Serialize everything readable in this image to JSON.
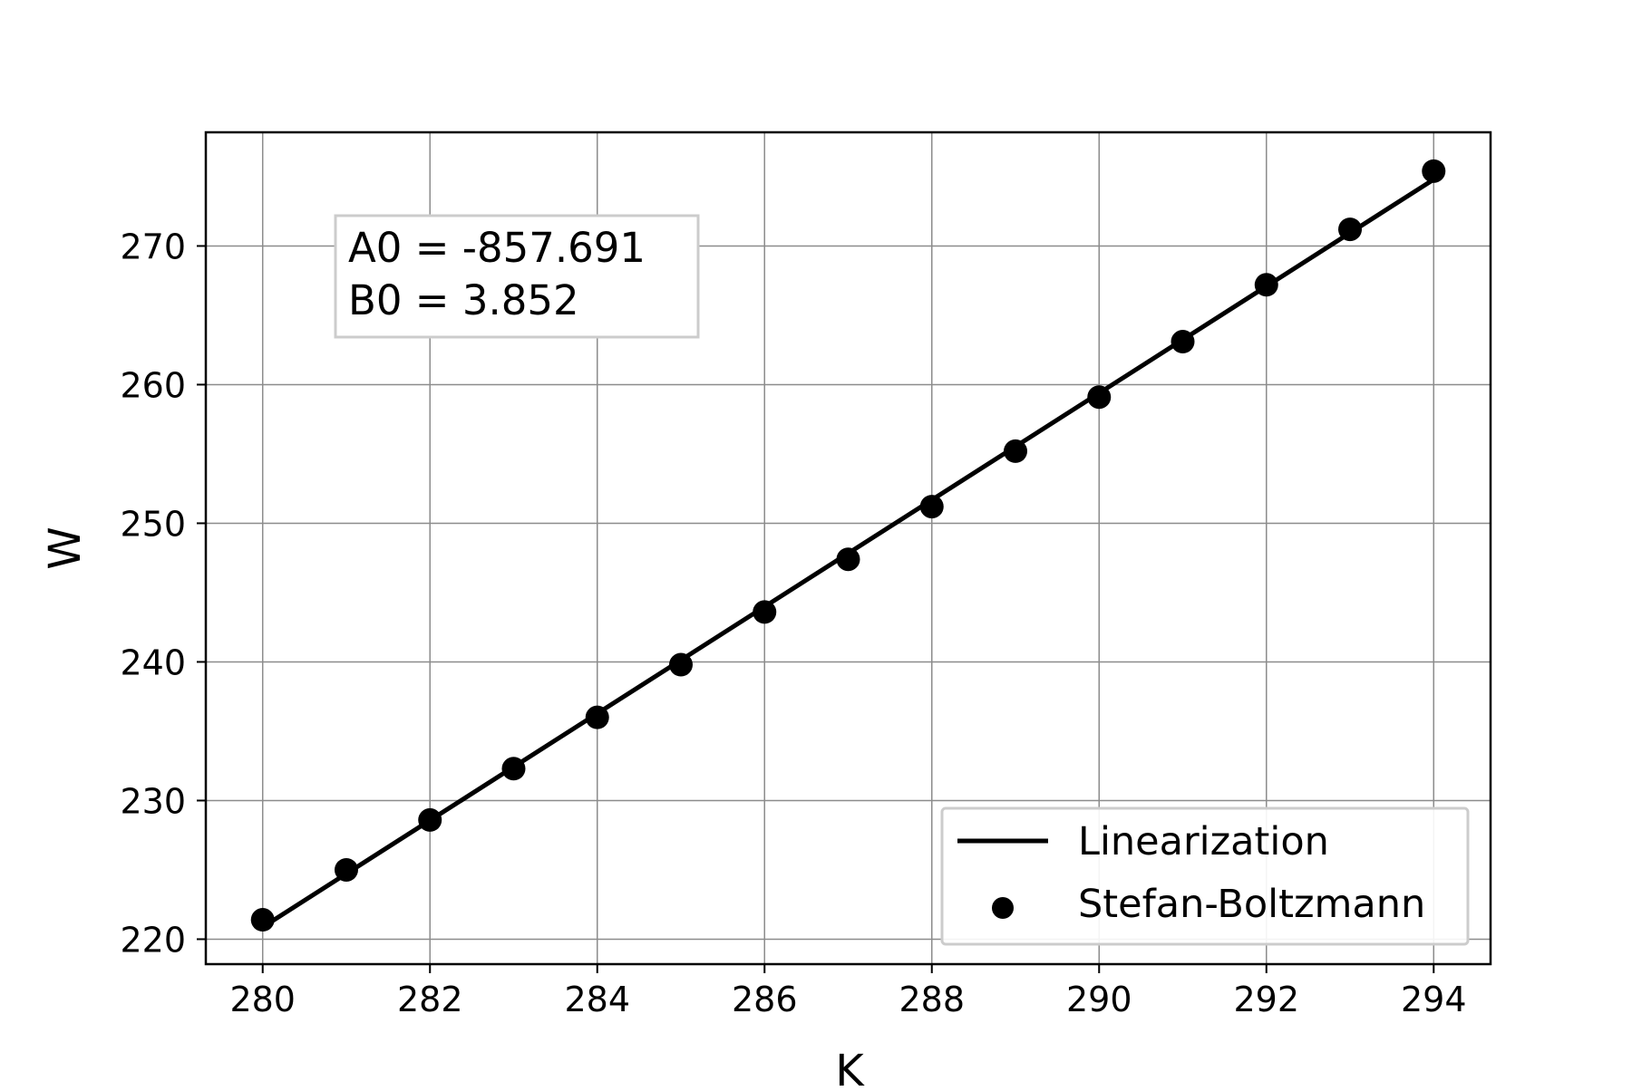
{
  "chart_data": {
    "type": "scatter",
    "title": "",
    "xlabel": "K",
    "ylabel": "W",
    "xlim": [
      279.32,
      294.68
    ],
    "ylim": [
      218.2,
      278.2
    ],
    "xticks": [
      280,
      282,
      284,
      286,
      288,
      290,
      292,
      294
    ],
    "yticks": [
      220,
      230,
      240,
      250,
      260,
      270
    ],
    "grid": true,
    "legend_position": "lower-right",
    "annotation": {
      "position": "upper-left",
      "lines": [
        "A0 = -857.691",
        "B0 = 3.852"
      ]
    },
    "series": [
      {
        "name": "Linearization",
        "kind": "line",
        "color": "#000000",
        "x": [
          280,
          294
        ],
        "y": [
          220.869,
          274.797
        ]
      },
      {
        "name": "Stefan-Boltzmann",
        "kind": "scatter",
        "color": "#000000",
        "x": [
          280,
          281,
          282,
          283,
          284,
          285,
          286,
          287,
          288,
          289,
          290,
          291,
          292,
          293,
          294
        ],
        "y": [
          221.4,
          225.0,
          228.6,
          232.3,
          236.0,
          239.8,
          243.6,
          247.4,
          251.2,
          255.2,
          259.1,
          263.1,
          267.2,
          271.2,
          275.4
        ]
      }
    ]
  }
}
